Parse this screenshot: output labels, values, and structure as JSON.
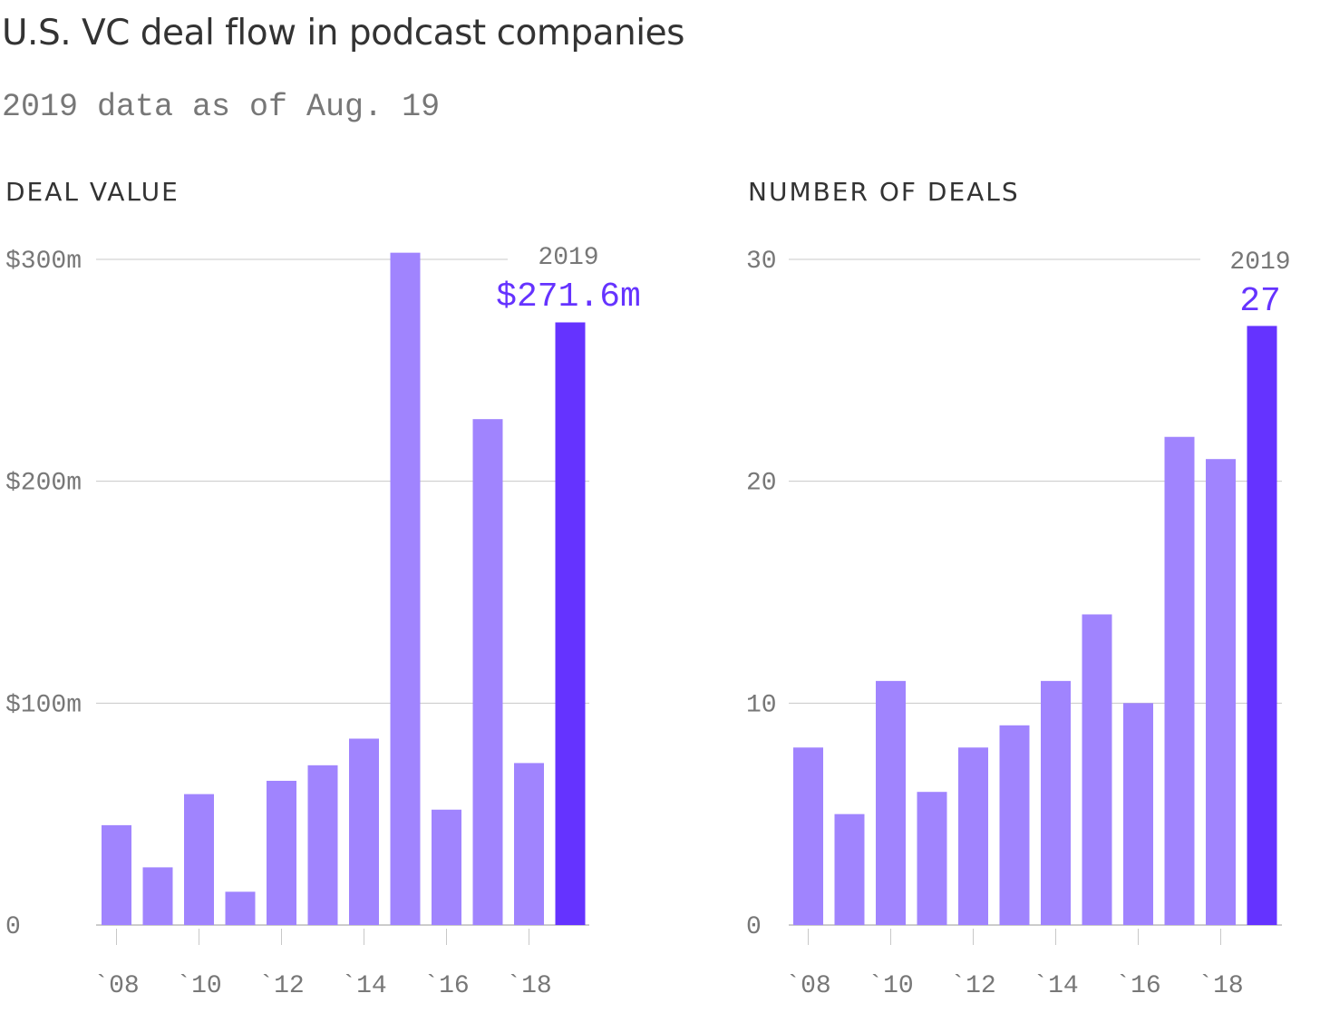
{
  "header": {
    "title": "U.S. VC deal flow in podcast companies",
    "subtitle": "2019 data as of Aug. 19"
  },
  "colors": {
    "bar": "#a084fe",
    "highlight": "#6533ff",
    "grid": "#c8c8c8",
    "tick_text": "#777777",
    "title_text": "#333333"
  },
  "chart_data": [
    {
      "type": "bar",
      "title": "DEAL VALUE",
      "x": [
        2008,
        2009,
        2010,
        2011,
        2012,
        2013,
        2014,
        2015,
        2016,
        2017,
        2018,
        2019
      ],
      "values": [
        45,
        26,
        59,
        15,
        65,
        72,
        84,
        303,
        52,
        228,
        73,
        271.6
      ],
      "unit": "$ millions",
      "ylim": [
        0,
        300
      ],
      "yticks": [
        0,
        100,
        200,
        300
      ],
      "ytick_labels": [
        "0",
        "$100m",
        "$200m",
        "$300m"
      ],
      "xtick_labels": [
        "`08",
        "`10",
        "`12",
        "`14",
        "`16",
        "`18"
      ],
      "grid": true,
      "highlight": {
        "year": "2019",
        "value_label": "$271.6m"
      }
    },
    {
      "type": "bar",
      "title": "NUMBER OF DEALS",
      "x": [
        2008,
        2009,
        2010,
        2011,
        2012,
        2013,
        2014,
        2015,
        2016,
        2017,
        2018,
        2019
      ],
      "values": [
        8,
        5,
        11,
        6,
        8,
        9,
        11,
        14,
        10,
        22,
        21,
        27
      ],
      "unit": "deals",
      "ylim": [
        0,
        30
      ],
      "yticks": [
        0,
        10,
        20,
        30
      ],
      "ytick_labels": [
        "0",
        "10",
        "20",
        "30"
      ],
      "xtick_labels": [
        "`08",
        "`10",
        "`12",
        "`14",
        "`16",
        "`18"
      ],
      "grid": true,
      "highlight": {
        "year": "2019",
        "value_label": "27"
      }
    }
  ]
}
